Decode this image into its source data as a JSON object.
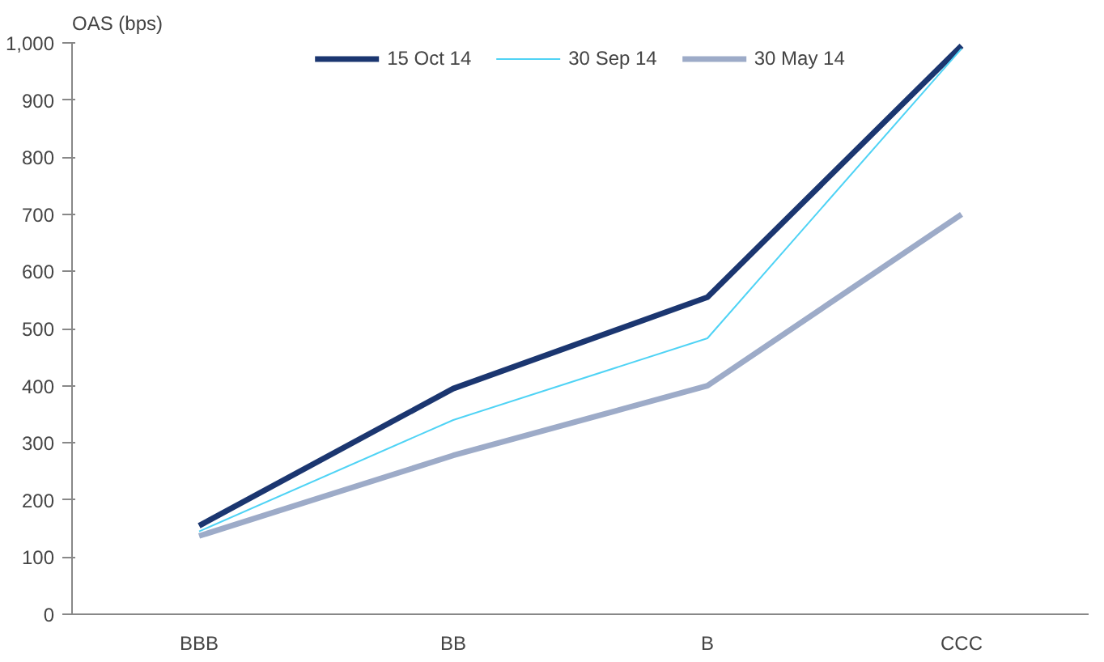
{
  "chart_data": {
    "type": "line",
    "ylabel": "OAS (bps)",
    "categories": [
      "BBB",
      "BB",
      "B",
      "CCC"
    ],
    "series": [
      {
        "name": "15 Oct 14",
        "color": "#1b3670",
        "values": [
          155,
          395,
          555,
          995
        ]
      },
      {
        "name": "30 Sep 14",
        "color": "#4fd3f5",
        "values": [
          145,
          340,
          483,
          990
        ]
      },
      {
        "name": "30 May 14",
        "color": "#9dabc8",
        "values": [
          137,
          278,
          400,
          700
        ]
      }
    ],
    "ylim": [
      0,
      1000
    ],
    "yticks": [
      0,
      100,
      200,
      300,
      400,
      500,
      600,
      700,
      800,
      900,
      {
        "value": 1000,
        "label": "1,000"
      }
    ],
    "grid": false,
    "legend": "top",
    "marker": "none",
    "line_style": "solid"
  }
}
